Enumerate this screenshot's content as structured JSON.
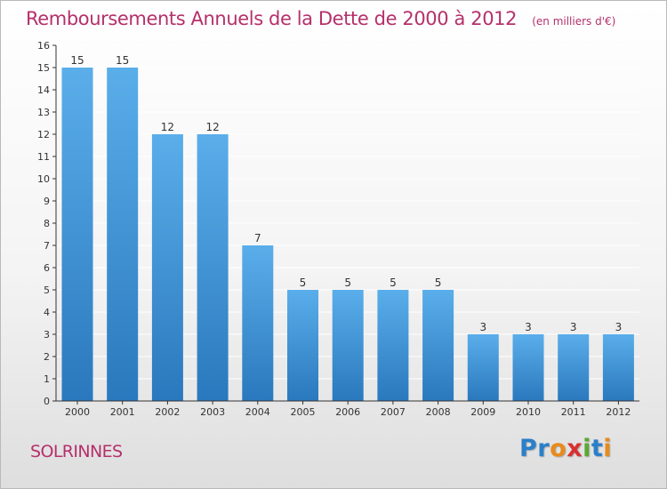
{
  "header": {
    "title": "Remboursements Annuels de la Dette de 2000 à 2012",
    "unit": "(en milliers d'€)"
  },
  "footer": {
    "commune": "SOLRINNES",
    "logo": {
      "text": "Proxiti",
      "letter_colors": [
        "#2a7fc9",
        "#2a7fc9",
        "#e98a1c",
        "#d92f2f",
        "#5aa832",
        "#2a7fc9",
        "#e98a1c"
      ]
    }
  },
  "colors": {
    "title": "#b5306b",
    "bar_top": "#5aaeea",
    "bar_bottom": "#2a78bd",
    "axis": "#333333",
    "label": "#333333",
    "grid": "#ffffff"
  },
  "chart_data": {
    "type": "bar",
    "title": "Remboursements Annuels de la Dette de 2000 à 2012",
    "categories": [
      "2000",
      "2001",
      "2002",
      "2003",
      "2004",
      "2005",
      "2006",
      "2007",
      "2008",
      "2009",
      "2010",
      "2011",
      "2012"
    ],
    "values": [
      15,
      15,
      12,
      12,
      7,
      5,
      5,
      5,
      5,
      3,
      3,
      3,
      3
    ],
    "yticks": [
      "0",
      "1",
      "2",
      "3",
      "4",
      "5",
      "6",
      "7",
      "8",
      "9",
      "10",
      "11",
      "12",
      "13",
      "14",
      "15",
      "16"
    ],
    "ylim": [
      0,
      16
    ],
    "grid": true,
    "data_labels": true
  }
}
